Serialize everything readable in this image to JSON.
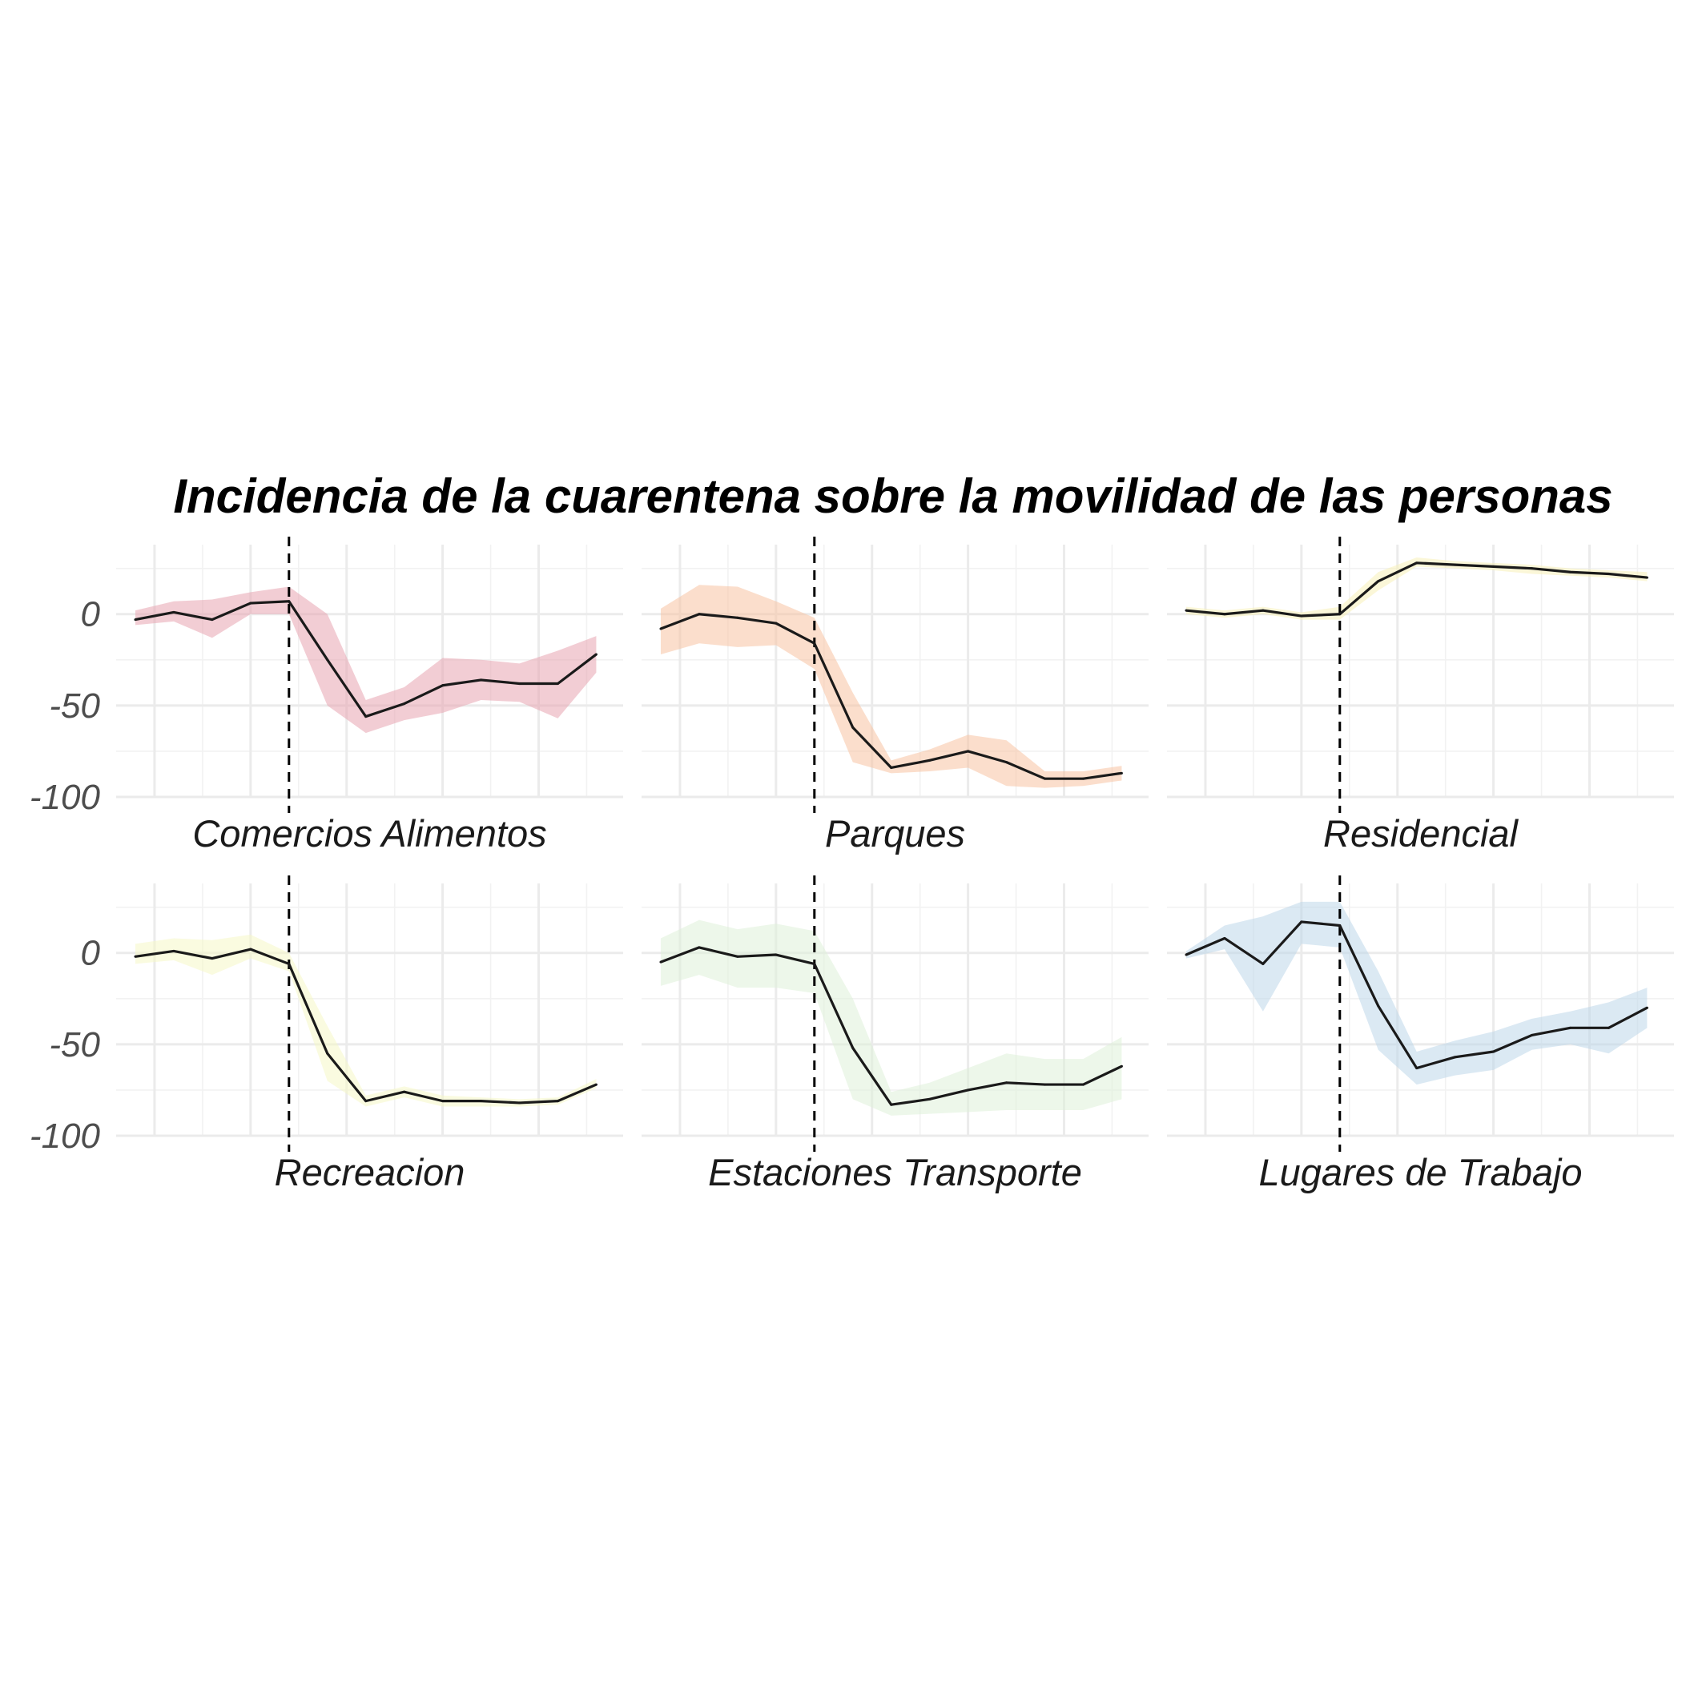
{
  "chart_data": {
    "type": "line",
    "title": "Incidencia de la cuarentena sobre la movilidad de las personas",
    "xlabel": "",
    "ylabel": "",
    "ylim": [
      -100,
      38
    ],
    "yticks": [
      0,
      -50,
      -100
    ],
    "y_tick_labels": [
      "0",
      "-50",
      "-100"
    ],
    "x": [
      1,
      2,
      3,
      4,
      5,
      6,
      7,
      8,
      9,
      10,
      11,
      12,
      13
    ],
    "xlim": [
      0.5,
      13.7
    ],
    "event_x": 5,
    "grid": true,
    "legend": "none",
    "layout": "facets 2x3",
    "panels": [
      {
        "name": "Comercios Alimentos",
        "color": "#e8a4b0",
        "values": [
          -3,
          1,
          -3,
          6,
          7,
          -25,
          -56,
          -49,
          -39,
          -36,
          -38,
          -38,
          -22
        ],
        "lower": [
          -6,
          -4,
          -13,
          0,
          0,
          -50,
          -65,
          -58,
          -54,
          -47,
          -48,
          -57,
          -32
        ],
        "upper": [
          2,
          7,
          8,
          12,
          15,
          0,
          -47,
          -40,
          -24,
          -25,
          -27,
          -20,
          -12
        ]
      },
      {
        "name": "Parques",
        "color": "#f7c2a2",
        "values": [
          -8,
          0,
          -2,
          -5,
          -16,
          -62,
          -84,
          -80,
          -75,
          -81,
          -90,
          -90,
          -87
        ],
        "lower": [
          -22,
          -16,
          -18,
          -17,
          -30,
          -81,
          -87,
          -86,
          -84,
          -94,
          -95,
          -94,
          -91
        ],
        "upper": [
          3,
          16,
          15,
          7,
          -2,
          -43,
          -80,
          -74,
          -66,
          -69,
          -86,
          -86,
          -83
        ]
      },
      {
        "name": "Residencial",
        "color": "#f8f1b8",
        "values": [
          2,
          0,
          2,
          -1,
          0,
          18,
          28,
          27,
          26,
          25,
          23,
          22,
          20
        ],
        "lower": [
          0,
          -2,
          0,
          -3,
          -3,
          13,
          26,
          25,
          24,
          22,
          21,
          20,
          18
        ],
        "upper": [
          4,
          2,
          4,
          1,
          4,
          23,
          31,
          29,
          28,
          27,
          25,
          24,
          23
        ]
      },
      {
        "name": "Recreacion",
        "color": "#f6f8c6",
        "values": [
          -2,
          1,
          -3,
          2,
          -6,
          -55,
          -81,
          -76,
          -81,
          -81,
          -82,
          -81,
          -72
        ],
        "lower": [
          -6,
          -4,
          -12,
          -3,
          -10,
          -70,
          -84,
          -79,
          -84,
          -84,
          -84,
          -83,
          -74
        ],
        "upper": [
          5,
          8,
          7,
          10,
          0,
          -40,
          -78,
          -73,
          -78,
          -79,
          -80,
          -79,
          -69
        ]
      },
      {
        "name": "Estaciones Transporte",
        "color": "#dff0d9",
        "values": [
          -5,
          3,
          -2,
          -1,
          -6,
          -52,
          -83,
          -80,
          -75,
          -71,
          -72,
          -72,
          -62
        ],
        "lower": [
          -18,
          -12,
          -19,
          -19,
          -22,
          -80,
          -89,
          -88,
          -87,
          -86,
          -86,
          -86,
          -80
        ],
        "upper": [
          8,
          18,
          13,
          16,
          12,
          -25,
          -76,
          -71,
          -63,
          -55,
          -58,
          -58,
          -46
        ]
      },
      {
        "name": "Lugares de Trabajo",
        "color": "#bed7ea",
        "values": [
          -1,
          8,
          -6,
          17,
          15,
          -29,
          -63,
          -57,
          -54,
          -45,
          -41,
          -41,
          -30
        ],
        "lower": [
          -3,
          2,
          -32,
          5,
          3,
          -53,
          -72,
          -67,
          -64,
          -53,
          -50,
          -55,
          -41
        ],
        "upper": [
          1,
          15,
          20,
          28,
          28,
          -10,
          -54,
          -48,
          -43,
          -36,
          -32,
          -27,
          -19
        ]
      }
    ]
  }
}
